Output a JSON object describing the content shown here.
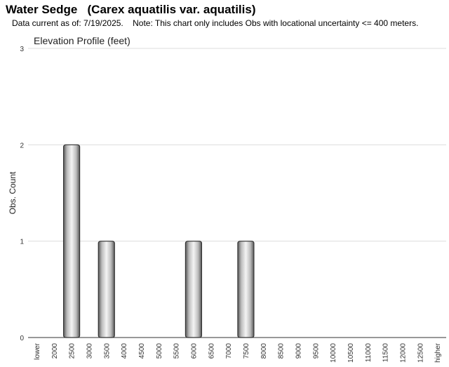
{
  "header": {
    "title": "Water Sedge   (Carex aquatilis var. aquatilis)",
    "subtitle": "Data current as of: 7/19/2025.    Note: This chart only includes Obs with locational uncertainty <= 400 meters."
  },
  "chart_data": {
    "type": "bar",
    "title": "Elevation Profile (feet)",
    "xlabel": "",
    "ylabel": "Obs. Count",
    "ylim": [
      0,
      3
    ],
    "yticks": [
      "0",
      "1",
      "2",
      "3"
    ],
    "grid": true,
    "categories": [
      "lower",
      "2000",
      "2500",
      "3000",
      "3500",
      "4000",
      "4500",
      "5000",
      "5500",
      "6000",
      "6500",
      "7000",
      "7500",
      "8000",
      "8500",
      "9000",
      "9500",
      "10000",
      "10500",
      "11000",
      "11500",
      "12000",
      "12500",
      "higher"
    ],
    "values": [
      0,
      0,
      2,
      0,
      1,
      0,
      0,
      0,
      0,
      1,
      0,
      0,
      1,
      0,
      0,
      0,
      0,
      0,
      0,
      0,
      0,
      0,
      0,
      0
    ],
    "bar_color": "#a9a9a9"
  }
}
